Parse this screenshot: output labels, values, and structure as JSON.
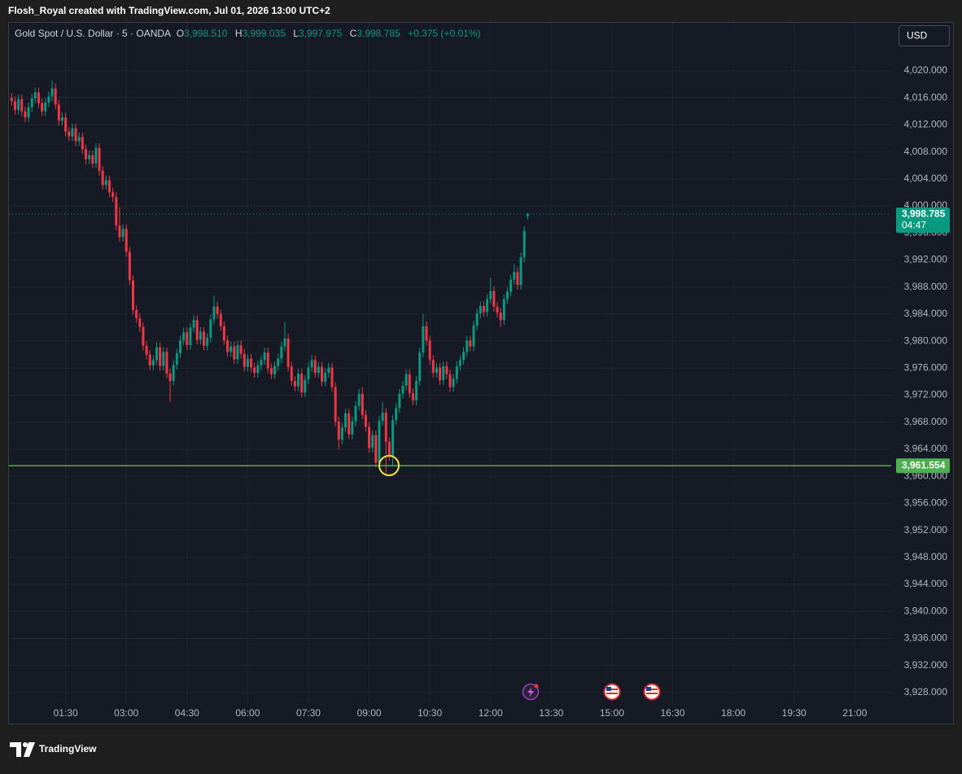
{
  "header": {
    "title": "Flosh_Royal created with TradingView.com, Jul 01, 2026 13:00 UTC+2"
  },
  "chart_data": {
    "type": "candlestick",
    "symbol": "Gold Spot / U.S. Dollar · 5 · OANDA",
    "legend_labels": [
      "O",
      "H",
      "L",
      "C"
    ],
    "legend_values": [
      "3,998.510",
      "3,999.035",
      "3,997.975",
      "3,998.785"
    ],
    "change": "+0.375 (+0.01%)",
    "currency": "USD",
    "up_color": "#089981",
    "down_color": "#f23645",
    "grid": true,
    "x": [
      "00:10",
      "00:15",
      "00:20",
      "00:25",
      "00:30",
      "00:35",
      "00:40",
      "00:45",
      "00:50",
      "00:55",
      "01:00",
      "01:05",
      "01:10",
      "01:15",
      "01:20",
      "01:25",
      "01:30",
      "01:35",
      "01:40",
      "01:45",
      "01:50",
      "01:55",
      "02:00",
      "02:05",
      "02:10",
      "02:15",
      "02:20",
      "02:25",
      "02:30",
      "02:35",
      "02:40",
      "02:45",
      "02:50",
      "02:55",
      "03:00",
      "03:05",
      "03:10",
      "03:15",
      "03:20",
      "03:25",
      "03:30",
      "03:35",
      "03:40",
      "03:45",
      "03:50",
      "03:55",
      "04:00",
      "04:05",
      "04:10",
      "04:15",
      "04:20",
      "04:25",
      "04:30",
      "04:35",
      "04:40",
      "04:45",
      "04:50",
      "04:55",
      "05:00",
      "05:05",
      "05:10",
      "05:15",
      "05:20",
      "05:25",
      "05:30",
      "05:35",
      "05:40",
      "05:45",
      "05:50",
      "05:55",
      "06:00",
      "06:05",
      "06:10",
      "06:15",
      "06:20",
      "06:25",
      "06:30",
      "06:35",
      "06:40",
      "06:45",
      "06:50",
      "06:55",
      "07:00",
      "07:05",
      "07:10",
      "07:15",
      "07:20",
      "07:25",
      "07:30",
      "07:35",
      "07:40",
      "07:45",
      "07:50",
      "07:55",
      "08:00",
      "08:05",
      "08:10",
      "08:15",
      "08:20",
      "08:25",
      "08:30",
      "08:35",
      "08:40",
      "08:45",
      "08:50",
      "08:55",
      "09:00",
      "09:05",
      "09:10",
      "09:15",
      "09:20",
      "09:25",
      "09:30",
      "09:35",
      "09:40",
      "09:45",
      "09:50",
      "09:55",
      "10:00",
      "10:05",
      "10:10",
      "10:15",
      "10:20",
      "10:25",
      "10:30",
      "10:35",
      "10:40",
      "10:45",
      "10:50",
      "10:55",
      "11:00",
      "11:05",
      "11:10",
      "11:15",
      "11:20",
      "11:25",
      "11:30",
      "11:35",
      "11:40",
      "11:45",
      "11:50",
      "11:55",
      "12:00",
      "12:05",
      "12:10",
      "12:15",
      "12:20",
      "12:25",
      "12:30",
      "12:35",
      "12:40",
      "12:45",
      "12:50",
      "12:55"
    ],
    "open": [
      4016.0,
      4015.5,
      4014.2,
      4015.8,
      4014.0,
      4013.1,
      4014.6,
      4015.9,
      4016.8,
      4015.2,
      4014.0,
      4015.3,
      4016.2,
      4017.4,
      4015.0,
      4012.6,
      4013.1,
      4011.0,
      4010.3,
      4011.5,
      4009.6,
      4010.2,
      4008.4,
      4006.9,
      4007.5,
      4006.3,
      4008.6,
      4005.2,
      4003.1,
      4003.8,
      4002.0,
      4001.3,
      3997.1,
      3995.4,
      3996.6,
      3993.2,
      3989.0,
      3984.6,
      3983.4,
      3982.1,
      3979.3,
      3978.0,
      3976.4,
      3977.2,
      3979.1,
      3976.3,
      3978.4,
      3975.2,
      3974.1,
      3976.5,
      3978.2,
      3980.1,
      3981.3,
      3979.4,
      3982.0,
      3983.1,
      3980.2,
      3981.4,
      3979.3,
      3980.5,
      3983.2,
      3985.1,
      3984.0,
      3982.2,
      3980.1,
      3978.4,
      3979.2,
      3977.3,
      3979.4,
      3978.1,
      3976.2,
      3977.4,
      3976.1,
      3975.3,
      3976.4,
      3977.2,
      3978.3,
      3976.0,
      3975.1,
      3976.3,
      3977.4,
      3979.2,
      3980.4,
      3976.2,
      3974.1,
      3973.3,
      3975.2,
      3972.4,
      3974.3,
      3976.1,
      3977.2,
      3975.3,
      3976.2,
      3974.0,
      3975.3,
      3976.1,
      3973.2,
      3968.1,
      3965.4,
      3967.2,
      3969.3,
      3966.2,
      3968.1,
      3970.4,
      3972.2,
      3969.1,
      3967.3,
      3964.2,
      3966.1,
      3962.0,
      3968.2,
      3969.4,
      3965.1,
      3963.0,
      3968.3,
      3970.1,
      3972.2,
      3973.4,
      3975.1,
      3972.3,
      3971.2,
      3974.1,
      3978.3,
      3982.2,
      3980.1,
      3977.2,
      3975.3,
      3976.1,
      3974.2,
      3976.3,
      3975.1,
      3973.2,
      3974.4,
      3976.3,
      3977.2,
      3978.4,
      3980.1,
      3979.2,
      3982.3,
      3984.1,
      3985.2,
      3984.3,
      3986.2,
      3987.4,
      3985.1,
      3984.2,
      3983.1,
      3986.2,
      3987.3,
      3989.1,
      3990.2,
      3988.3,
      3992.4,
      3998.51
    ],
    "high": [
      4016.7,
      4016.2,
      4016.5,
      4016.5,
      4014.7,
      4015.3,
      4016.6,
      4017.5,
      4017.5,
      4015.9,
      4016.0,
      4016.9,
      4018.6,
      4018.1,
      4015.7,
      4013.8,
      4013.8,
      4011.7,
      4012.2,
      4012.2,
      4010.9,
      4010.9,
      4009.1,
      4008.2,
      4008.2,
      4009.3,
      4009.3,
      4005.9,
      4004.5,
      4004.5,
      4002.7,
      4002.0,
      3999.8,
      3997.3,
      3997.3,
      3993.9,
      3989.7,
      3985.3,
      3984.1,
      3982.8,
      3980.0,
      3978.7,
      3977.9,
      3979.8,
      3979.8,
      3979.1,
      3979.1,
      3975.9,
      3977.2,
      3978.9,
      3980.8,
      3982.0,
      3982.0,
      3982.7,
      3983.8,
      3983.8,
      3982.1,
      3982.1,
      3981.2,
      3983.9,
      3986.7,
      3985.8,
      3984.7,
      3982.9,
      3980.8,
      3979.9,
      3979.9,
      3980.1,
      3980.1,
      3978.8,
      3978.1,
      3978.1,
      3976.8,
      3977.1,
      3977.9,
      3979.0,
      3979.0,
      3976.7,
      3977.0,
      3978.1,
      3979.9,
      3982.8,
      3981.1,
      3976.9,
      3974.8,
      3975.9,
      3975.9,
      3975.0,
      3976.8,
      3977.9,
      3977.9,
      3976.9,
      3976.9,
      3976.0,
      3976.8,
      3976.8,
      3973.9,
      3968.8,
      3967.9,
      3970.0,
      3970.0,
      3968.8,
      3971.1,
      3972.9,
      3973.2,
      3969.8,
      3968.0,
      3966.8,
      3966.8,
      3968.9,
      3971.0,
      3970.1,
      3965.8,
      3969.0,
      3970.8,
      3972.9,
      3974.1,
      3975.8,
      3975.8,
      3973.0,
      3974.8,
      3979.0,
      3984.0,
      3982.9,
      3980.8,
      3977.9,
      3976.8,
      3976.8,
      3977.0,
      3977.0,
      3975.8,
      3975.1,
      3977.0,
      3977.9,
      3979.1,
      3980.8,
      3980.8,
      3983.0,
      3984.8,
      3985.9,
      3985.9,
      3986.9,
      3989.4,
      3988.1,
      3985.8,
      3984.9,
      3986.9,
      3988.0,
      3989.8,
      3991.4,
      3990.9,
      3993.1,
      3997.0,
      3999.035
    ],
    "low": [
      4014.8,
      4013.5,
      4013.5,
      4013.3,
      4012.4,
      4012.4,
      4013.9,
      4015.2,
      4014.5,
      4013.3,
      4013.3,
      4014.6,
      4015.5,
      4014.3,
      4011.9,
      4011.9,
      4010.3,
      4009.6,
      4009.6,
      4008.9,
      4008.9,
      4007.7,
      4006.2,
      4006.2,
      4005.6,
      4005.6,
      4004.5,
      4002.4,
      4002.4,
      4001.3,
      4000.6,
      3996.4,
      3994.7,
      3994.7,
      3992.5,
      3988.3,
      3983.9,
      3982.7,
      3981.4,
      3978.6,
      3977.3,
      3975.7,
      3975.7,
      3976.5,
      3975.6,
      3975.6,
      3974.5,
      3971.0,
      3973.4,
      3975.8,
      3977.5,
      3979.4,
      3978.7,
      3978.7,
      3981.3,
      3979.5,
      3979.5,
      3978.6,
      3978.6,
      3979.8,
      3982.5,
      3983.3,
      3981.5,
      3979.4,
      3977.7,
      3977.7,
      3976.6,
      3976.6,
      3977.4,
      3975.5,
      3975.5,
      3975.4,
      3974.6,
      3974.6,
      3975.7,
      3976.5,
      3975.3,
      3974.4,
      3974.4,
      3975.6,
      3976.7,
      3978.5,
      3975.5,
      3973.4,
      3972.6,
      3972.6,
      3971.7,
      3971.7,
      3973.6,
      3975.4,
      3974.6,
      3974.6,
      3973.3,
      3973.3,
      3974.6,
      3972.5,
      3967.4,
      3964.0,
      3964.7,
      3966.5,
      3965.5,
      3965.5,
      3967.4,
      3969.7,
      3968.4,
      3966.6,
      3963.5,
      3963.5,
      3961.3,
      3961.3,
      3967.5,
      3960.4,
      3962.3,
      3961.5,
      3967.6,
      3969.4,
      3971.5,
      3972.7,
      3971.6,
      3970.5,
      3970.5,
      3973.4,
      3977.6,
      3979.4,
      3976.5,
      3974.6,
      3974.6,
      3973.5,
      3973.5,
      3974.4,
      3972.5,
      3972.5,
      3973.7,
      3975.6,
      3976.5,
      3977.7,
      3978.5,
      3978.5,
      3981.6,
      3983.4,
      3983.6,
      3983.6,
      3985.5,
      3984.4,
      3983.5,
      3982.1,
      3982.4,
      3985.5,
      3986.6,
      3988.4,
      3987.6,
      3987.6,
      3991.7,
      3997.975
    ],
    "close": [
      4015.5,
      4014.2,
      4015.8,
      4014.0,
      4013.1,
      4014.6,
      4015.9,
      4016.8,
      4015.2,
      4014.0,
      4015.3,
      4016.2,
      4017.4,
      4015.0,
      4012.6,
      4013.1,
      4011.0,
      4010.3,
      4011.5,
      4009.6,
      4010.2,
      4008.4,
      4006.9,
      4007.5,
      4006.3,
      4008.6,
      4005.2,
      4003.1,
      4003.8,
      4002.0,
      4001.3,
      3997.1,
      3995.4,
      3996.6,
      3993.2,
      3989.0,
      3984.6,
      3983.4,
      3982.1,
      3979.3,
      3978.0,
      3976.4,
      3977.2,
      3979.1,
      3976.3,
      3978.4,
      3975.2,
      3974.1,
      3976.5,
      3978.2,
      3980.1,
      3981.3,
      3979.4,
      3982.0,
      3983.1,
      3980.2,
      3981.4,
      3979.3,
      3980.5,
      3983.2,
      3985.1,
      3984.0,
      3982.2,
      3980.1,
      3978.4,
      3979.2,
      3977.3,
      3979.4,
      3978.1,
      3976.2,
      3977.4,
      3976.1,
      3975.3,
      3976.4,
      3977.2,
      3978.3,
      3976.0,
      3975.1,
      3976.3,
      3977.4,
      3979.2,
      3980.4,
      3976.2,
      3974.1,
      3973.3,
      3975.2,
      3972.4,
      3974.3,
      3976.1,
      3977.2,
      3975.3,
      3976.2,
      3974.0,
      3975.3,
      3976.1,
      3973.2,
      3968.1,
      3965.4,
      3967.2,
      3969.3,
      3966.2,
      3968.1,
      3970.4,
      3972.2,
      3969.1,
      3967.3,
      3964.2,
      3966.1,
      3962.0,
      3968.2,
      3969.4,
      3965.1,
      3963.0,
      3968.3,
      3970.1,
      3972.2,
      3973.4,
      3975.1,
      3972.3,
      3971.2,
      3974.1,
      3978.3,
      3982.2,
      3980.1,
      3977.2,
      3975.3,
      3976.1,
      3974.2,
      3976.3,
      3975.1,
      3973.2,
      3974.4,
      3976.3,
      3977.2,
      3978.4,
      3980.1,
      3979.2,
      3982.3,
      3984.1,
      3985.2,
      3984.3,
      3986.2,
      3987.4,
      3985.1,
      3984.2,
      3983.1,
      3986.2,
      3987.3,
      3989.1,
      3990.2,
      3988.3,
      3992.4,
      3996.3,
      3998.785
    ],
    "xlim": [
      "00:06",
      "21:54"
    ],
    "xticks": [
      "01:30",
      "03:00",
      "04:30",
      "06:00",
      "07:30",
      "09:00",
      "10:30",
      "12:00",
      "13:30",
      "15:00",
      "16:30",
      "18:00",
      "19:30",
      "21:00"
    ],
    "ylim": [
      3926.3,
      4027.1
    ],
    "yticks": [
      {
        "value": 3928,
        "label": "3,928.000"
      },
      {
        "value": 3932,
        "label": "3,932.000"
      },
      {
        "value": 3936,
        "label": "3,936.000"
      },
      {
        "value": 3940,
        "label": "3,940.000"
      },
      {
        "value": 3944,
        "label": "3,944.000"
      },
      {
        "value": 3948,
        "label": "3,948.000"
      },
      {
        "value": 3952,
        "label": "3,952.000"
      },
      {
        "value": 3956,
        "label": "3,956.000"
      },
      {
        "value": 3960,
        "label": "3,960.000"
      },
      {
        "value": 3964,
        "label": "3,964.000"
      },
      {
        "value": 3968,
        "label": "3,968.000"
      },
      {
        "value": 3972,
        "label": "3,972.000"
      },
      {
        "value": 3976,
        "label": "3,976.000"
      },
      {
        "value": 3980,
        "label": "3,980.000"
      },
      {
        "value": 3984,
        "label": "3,984.000"
      },
      {
        "value": 3988,
        "label": "3,988.000"
      },
      {
        "value": 3992,
        "label": "3,992.000"
      },
      {
        "value": 3996,
        "label": "3,996.000"
      },
      {
        "value": 4000,
        "label": "4,000.000"
      },
      {
        "value": 4004,
        "label": "4,004.000"
      },
      {
        "value": 4008,
        "label": "4,008.000"
      },
      {
        "value": 4012,
        "label": "4,012.000"
      },
      {
        "value": 4016,
        "label": "4,016.000"
      },
      {
        "value": 4020,
        "label": "4,020.000"
      }
    ],
    "last_price_label": "3,998.785",
    "countdown": "04:47",
    "hline": {
      "value": 3961.554,
      "label": "3,961.554",
      "color": "#4caf50"
    }
  },
  "footer": {
    "brand": "TradingView"
  }
}
